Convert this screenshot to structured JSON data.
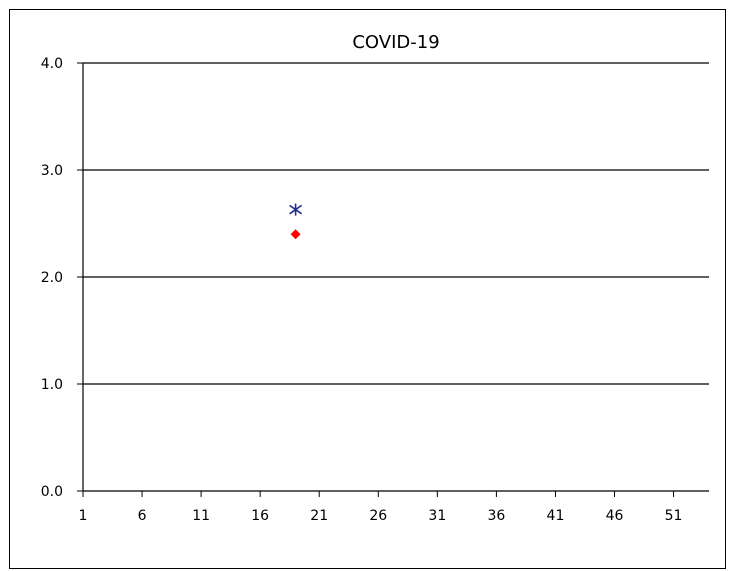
{
  "chart_data": {
    "type": "scatter",
    "title": "COVID-19",
    "xlabel": "",
    "ylabel": "",
    "xlim": [
      1,
      54
    ],
    "ylim": [
      0.0,
      4.0
    ],
    "x_ticks": [
      1,
      6,
      11,
      16,
      21,
      26,
      31,
      36,
      41,
      46,
      51
    ],
    "y_ticks": [
      "0.0",
      "1.0",
      "2.0",
      "3.0",
      "4.0"
    ],
    "grid": "horizontal",
    "legend": "none",
    "series": [
      {
        "marker": "asterisk",
        "color": "#1f2a8c",
        "points": [
          {
            "x": 19,
            "y": 2.63
          }
        ]
      },
      {
        "marker": "diamond",
        "color": "#ff0000",
        "points": [
          {
            "x": 19,
            "y": 2.4
          }
        ]
      }
    ]
  }
}
